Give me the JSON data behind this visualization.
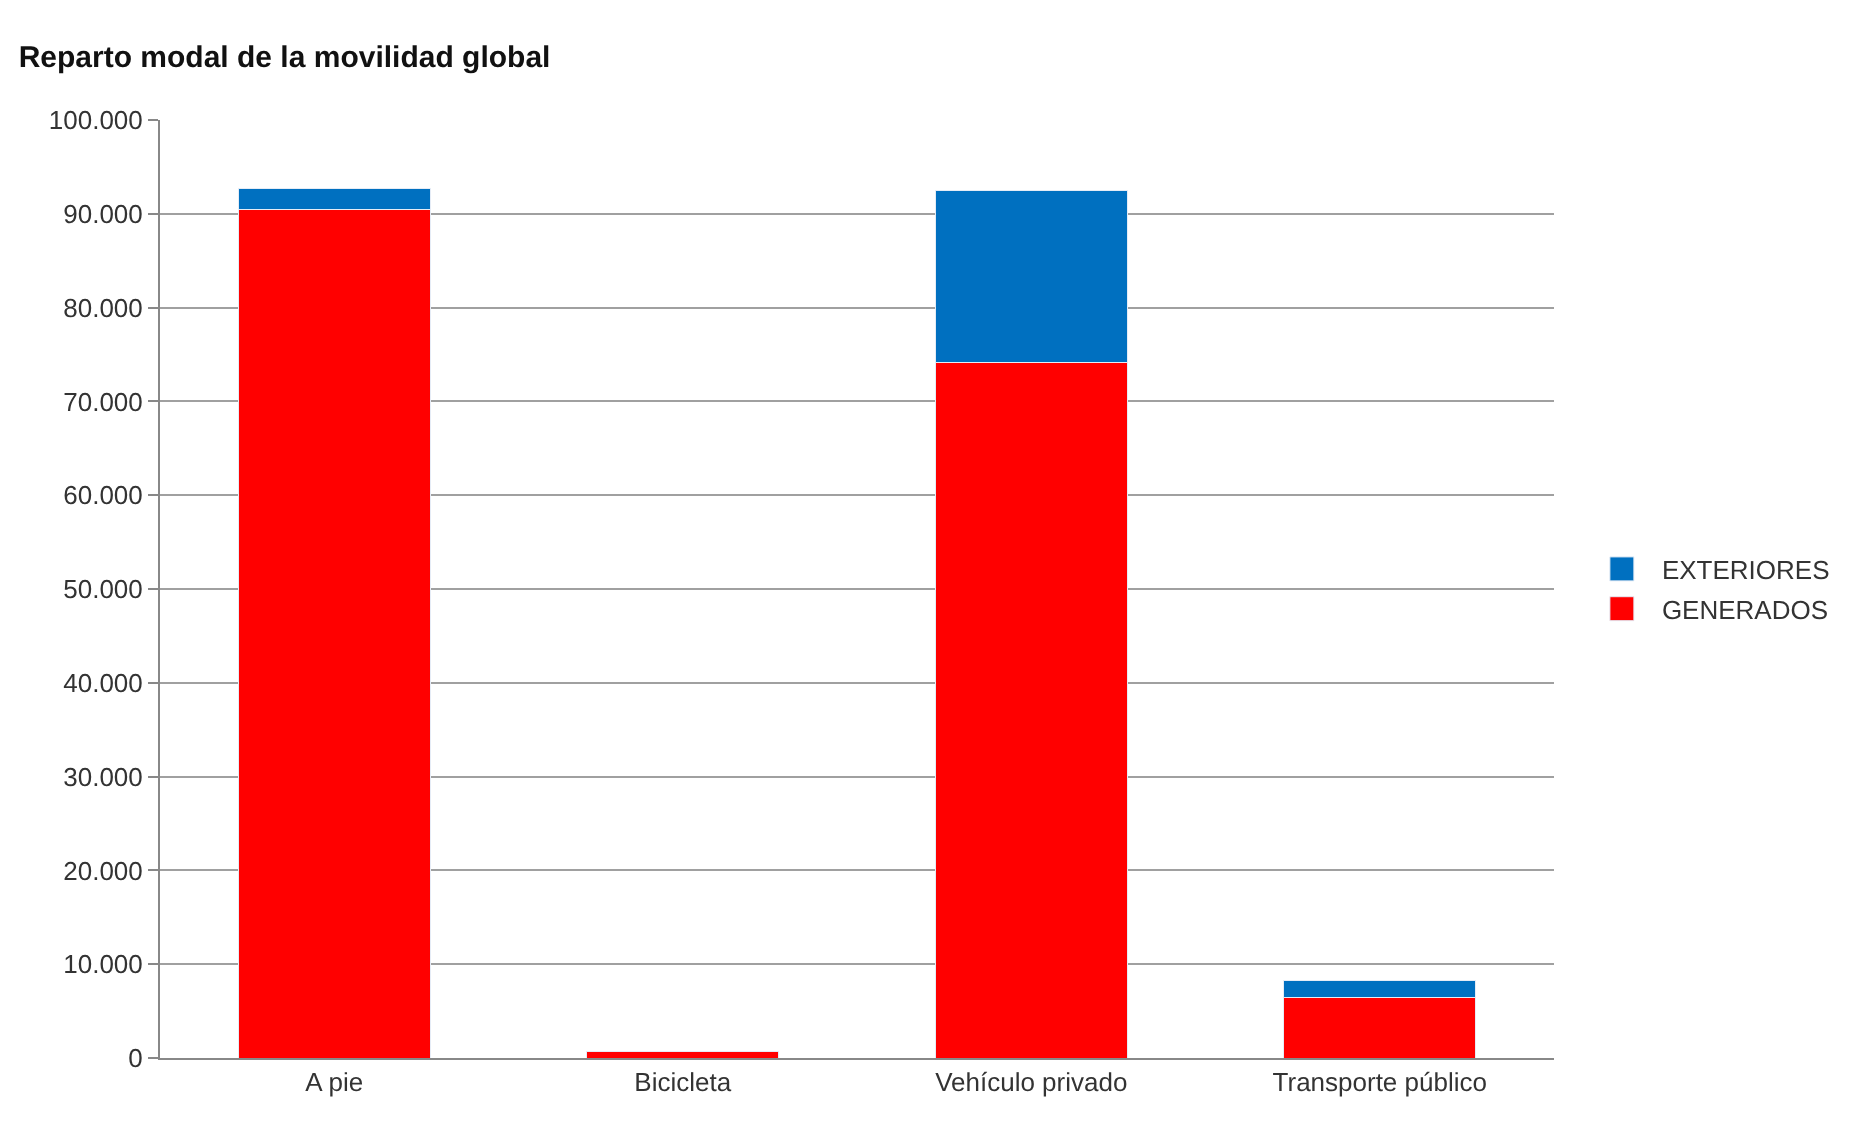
{
  "chart_data": {
    "type": "bar",
    "title": "Reparto modal de la movilidad global",
    "categories": [
      "A pie",
      "Bicicleta",
      "Vehículo privado",
      "Transporte público"
    ],
    "stacked": true,
    "series": [
      {
        "name": "GENERADOS",
        "color": "#ff0000",
        "values": [
          90500,
          700,
          74100,
          6400
        ]
      },
      {
        "name": "EXTERIORES",
        "color": "#0070c0",
        "values": [
          2200,
          null,
          18400,
          1900
        ]
      }
    ],
    "ylim": [
      0,
      100000
    ],
    "yticks": [
      {
        "value": 0,
        "label": "0"
      },
      {
        "value": 10000,
        "label": "10.000"
      },
      {
        "value": 20000,
        "label": "20.000"
      },
      {
        "value": 30000,
        "label": "30.000"
      },
      {
        "value": 40000,
        "label": "40.000"
      },
      {
        "value": 50000,
        "label": "50.000"
      },
      {
        "value": 60000,
        "label": "60.000"
      },
      {
        "value": 70000,
        "label": "70.000"
      },
      {
        "value": 80000,
        "label": "80.000"
      },
      {
        "value": 90000,
        "label": "90.000"
      },
      {
        "value": 100000,
        "label": "100.000"
      }
    ],
    "grid": "y",
    "legend": "right"
  }
}
